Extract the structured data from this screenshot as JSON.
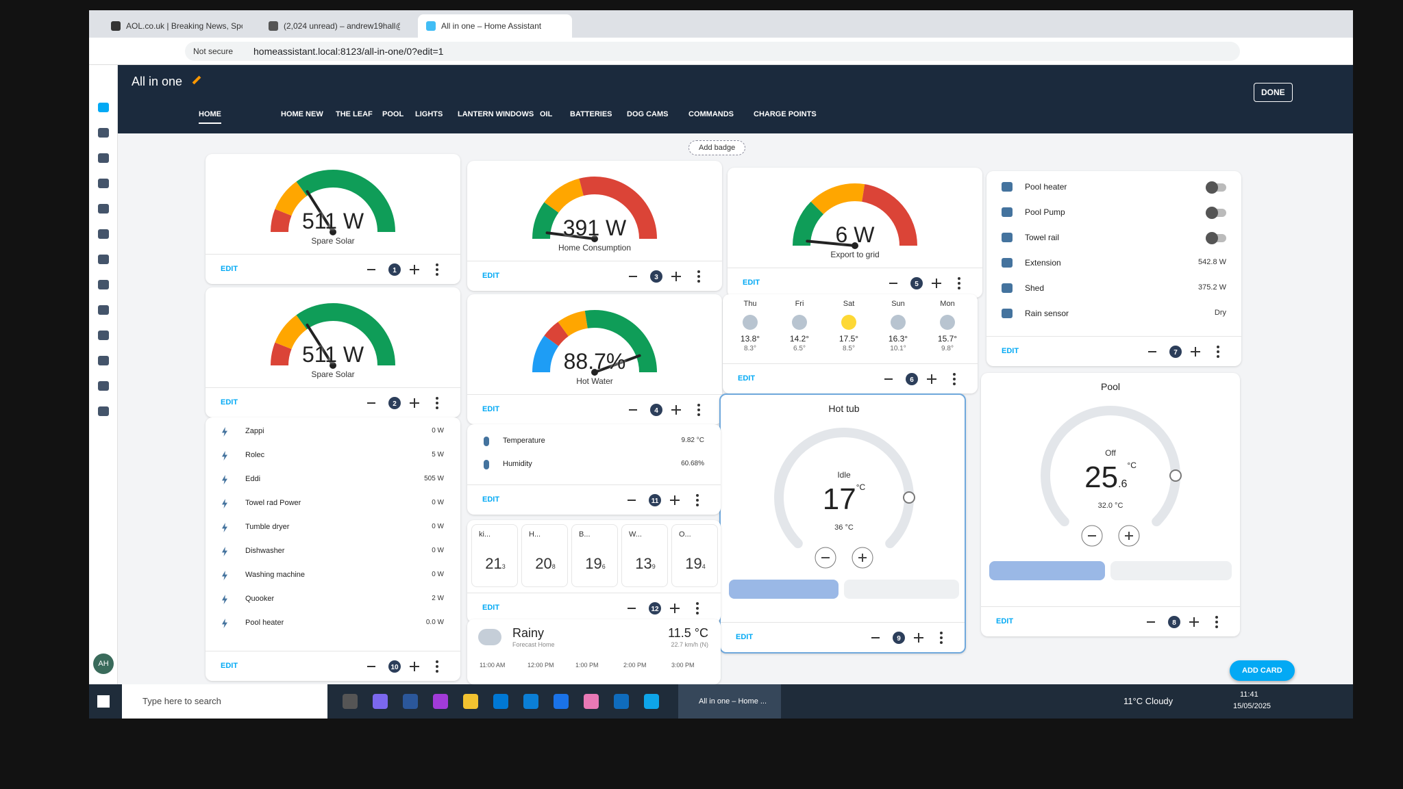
{
  "browser": {
    "tabs": [
      "AOL.co.uk | Breaking News, Spo",
      "(2,024 unread) – andrew19hall@",
      "All in one – Home Assistant"
    ],
    "security": "Not secure",
    "url": "homeassistant.local:8123/all-in-one/0?edit=1"
  },
  "header": {
    "title": "All in one",
    "done": "DONE",
    "views": [
      "HOME",
      "HOME NEW",
      "THE LEAF",
      "POOL",
      "LIGHTS",
      "LANTERN WINDOWS",
      "OIL",
      "BATTERIES",
      "DOG CAMS",
      "COMMANDS",
      "CHARGE POINTS"
    ],
    "add_badge": "Add badge"
  },
  "controls": {
    "edit": "EDIT",
    "add_card": "ADD CARD"
  },
  "gauges": [
    {
      "value": "511 W",
      "label": "Spare Solar",
      "position": "1"
    },
    {
      "value": "391 W",
      "label": "Home Consumption",
      "position": "3"
    },
    {
      "value": "6 W",
      "label": "Export to grid",
      "position": "5"
    },
    {
      "value": "511 W",
      "label": "Spare Solar",
      "position": "2"
    },
    {
      "value": "88.7%",
      "label": "Hot Water",
      "position": "4"
    }
  ],
  "forecast": {
    "days": [
      {
        "day": "Thu",
        "high": "13.8°",
        "low": "8.3°"
      },
      {
        "day": "Fri",
        "high": "14.2°",
        "low": "6.5°"
      },
      {
        "day": "Sat",
        "high": "17.5°",
        "low": "8.5°"
      },
      {
        "day": "Sun",
        "high": "16.3°",
        "low": "10.1°"
      },
      {
        "day": "Mon",
        "high": "15.7°",
        "low": "9.8°"
      }
    ],
    "position": "6"
  },
  "switches": {
    "entities": [
      {
        "name": "Pool heater"
      },
      {
        "name": "Pool Pump"
      },
      {
        "name": "Towel rail"
      },
      {
        "name": "Extension",
        "state": "542.8 W"
      },
      {
        "name": "Shed",
        "state": "375.2 W"
      },
      {
        "name": "Rain sensor",
        "state": "Dry"
      }
    ],
    "position": "7"
  },
  "power_list": {
    "entities": [
      {
        "name": "Zappi",
        "state": "0 W"
      },
      {
        "name": "Rolec",
        "state": "5 W"
      },
      {
        "name": "Eddi",
        "state": "505 W"
      },
      {
        "name": "Towel rad Power",
        "state": "0 W"
      },
      {
        "name": "Tumble dryer",
        "state": "0 W"
      },
      {
        "name": "Dishwasher",
        "state": "0 W"
      },
      {
        "name": "Washing machine",
        "state": "0 W"
      },
      {
        "name": "Quooker",
        "state": "2 W"
      },
      {
        "name": "Pool heater",
        "state": "0.0 W"
      }
    ],
    "position": "10"
  },
  "sensors": {
    "entities": [
      {
        "name": "Temperature",
        "state": "9.82 °C"
      },
      {
        "name": "Humidity",
        "state": "60.68%"
      }
    ],
    "position": "11"
  },
  "tiles": {
    "items": [
      {
        "name": "ki...",
        "whole": "21",
        "decimal": "3"
      },
      {
        "name": "H...",
        "whole": "20",
        "decimal": "8"
      },
      {
        "name": "B...",
        "whole": "19",
        "decimal": "6"
      },
      {
        "name": "W...",
        "whole": "13",
        "decimal": "9"
      },
      {
        "name": "O...",
        "whole": "19",
        "decimal": "4"
      }
    ],
    "position": "12"
  },
  "thermostats": [
    {
      "title": "Hot tub",
      "state": "Idle",
      "current": "17",
      "unit": "°C",
      "target": "36 °C",
      "position": "9"
    },
    {
      "title": "Pool",
      "state": "Off",
      "current": "25",
      "decimal": ".6",
      "unit": "°C",
      "target": "32.0 °C",
      "position": "8"
    }
  ],
  "weather": {
    "condition": "Rainy",
    "location": "Forecast Home",
    "temperature": "11.5 °C",
    "wind": "22.7 km/h (N)",
    "hours": [
      "11:00 AM",
      "12:00 PM",
      "1:00 PM",
      "2:00 PM",
      "3:00 PM"
    ]
  },
  "sidebar": {
    "avatar": "AH"
  },
  "taskbar": {
    "search": "Type here to search",
    "window": "All in one – Home ...",
    "weather": "11°C Cloudy",
    "time": "11:41",
    "date": "15/05/2025"
  }
}
